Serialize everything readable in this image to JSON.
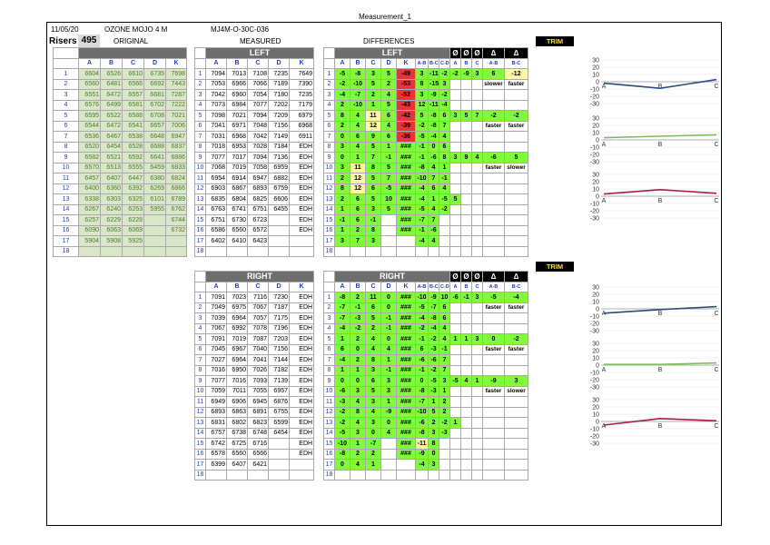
{
  "title": "Measurement_1",
  "header": {
    "date": "11/05/20",
    "product": "OZONE MOJO 4 M",
    "code": "MJ4M-O-30C-036"
  },
  "risers": {
    "label": "Risers",
    "count": "495"
  },
  "groups": {
    "original": "ORIGINAL",
    "measured": "MEASURED",
    "differences": "DIFFERENCES"
  },
  "bars": {
    "left": "LEFT",
    "right": "RIGHT",
    "trim": "TRIM",
    "phi": "Ø",
    "delta": "Δ"
  },
  "cols": {
    "letters": [
      "A",
      "B",
      "C",
      "D",
      "K"
    ],
    "diff": [
      "A",
      "B",
      "C",
      "D",
      "K",
      "A-B",
      "B-C",
      "C-D"
    ],
    "sym": [
      "Ø",
      "Ø",
      "Ø",
      "Δ",
      "Δ"
    ],
    "sub": [
      "A",
      "B",
      "C",
      "A-B",
      "B-C"
    ]
  },
  "original_rows": [
    [
      "1",
      "6604",
      "6526",
      "6610",
      "6735",
      "7698"
    ],
    [
      "2",
      "6560",
      "6481",
      "6566",
      "6692",
      "7443"
    ],
    [
      "3",
      "6551",
      "6472",
      "6557",
      "6681",
      "7287"
    ],
    [
      "4",
      "6576",
      "6499",
      "6581",
      "6702",
      "7222"
    ],
    [
      "5",
      "6595",
      "6522",
      "6588",
      "6708",
      "7021"
    ],
    [
      "6",
      "6544",
      "6472",
      "6541",
      "6657",
      "7006"
    ],
    [
      "7",
      "6536",
      "6467",
      "6538",
      "6648",
      "6947"
    ],
    [
      "8",
      "6520",
      "6454",
      "6528",
      "6688",
      "6837"
    ],
    [
      "9",
      "6582",
      "6521",
      "6592",
      "6641",
      "6886"
    ],
    [
      "10",
      "6570",
      "6513",
      "6555",
      "6459",
      "6833"
    ],
    [
      "11",
      "6457",
      "6407",
      "6447",
      "6380",
      "6824"
    ],
    [
      "12",
      "6400",
      "6360",
      "6392",
      "6269",
      "6866"
    ],
    [
      "13",
      "6338",
      "6303",
      "6325",
      "6101",
      "6789"
    ],
    [
      "14",
      "6267",
      "6240",
      "6253",
      "5955",
      "6762"
    ],
    [
      "15",
      "6257",
      "6229",
      "6228",
      "",
      "6744"
    ],
    [
      "16",
      "6090",
      "6063",
      "6069",
      "",
      "6732"
    ],
    [
      "17",
      "5904",
      "5908",
      "5925",
      "",
      ""
    ],
    [
      "18",
      "",
      "",
      "",
      "",
      ""
    ]
  ],
  "measured_left": [
    [
      "1",
      "7094",
      "7013",
      "7108",
      "7235",
      "7649"
    ],
    [
      "2",
      "7053",
      "6966",
      "7066",
      "7189",
      "7390"
    ],
    [
      "3",
      "7042",
      "6960",
      "7054",
      "7180",
      "7235"
    ],
    [
      "4",
      "7073",
      "6984",
      "7077",
      "7202",
      "7179"
    ],
    [
      "5",
      "7098",
      "7021",
      "7094",
      "7209",
      "6979"
    ],
    [
      "6",
      "7041",
      "6971",
      "7048",
      "7156",
      "6968"
    ],
    [
      "7",
      "7031",
      "6968",
      "7042",
      "7149",
      "6911"
    ],
    [
      "8",
      "7018",
      "6953",
      "7028",
      "7184",
      "EDH"
    ],
    [
      "9",
      "7077",
      "7017",
      "7094",
      "7136",
      "EDH"
    ],
    [
      "10",
      "7068",
      "7019",
      "7058",
      "6959",
      "EDH"
    ],
    [
      "11",
      "6954",
      "6914",
      "6947",
      "6882",
      "EDH"
    ],
    [
      "12",
      "6903",
      "6867",
      "6893",
      "6759",
      "EDH"
    ],
    [
      "13",
      "6835",
      "6804",
      "6825",
      "6606",
      "EDH"
    ],
    [
      "14",
      "6763",
      "6741",
      "6751",
      "6455",
      "EDH"
    ],
    [
      "15",
      "6751",
      "6730",
      "6723",
      "",
      "EDH"
    ],
    [
      "16",
      "6586",
      "6560",
      "6572",
      "",
      "EDH"
    ],
    [
      "17",
      "6402",
      "6410",
      "6423",
      "",
      ""
    ],
    [
      "18",
      "",
      "",
      "",
      "",
      ""
    ]
  ],
  "measured_right": [
    [
      "1",
      "7091",
      "7023",
      "7116",
      "7230",
      "EDH"
    ],
    [
      "2",
      "7049",
      "6975",
      "7067",
      "7187",
      "EDH"
    ],
    [
      "3",
      "7039",
      "6964",
      "7057",
      "7175",
      "EDH"
    ],
    [
      "4",
      "7067",
      "6992",
      "7078",
      "7196",
      "EDH"
    ],
    [
      "5",
      "7091",
      "7019",
      "7087",
      "7203",
      "EDH"
    ],
    [
      "6",
      "7045",
      "6967",
      "7040",
      "7156",
      "EDH"
    ],
    [
      "7",
      "7027",
      "6964",
      "7041",
      "7144",
      "EDH"
    ],
    [
      "8",
      "7016",
      "6950",
      "7026",
      "7182",
      "EDH"
    ],
    [
      "9",
      "7077",
      "7016",
      "7093",
      "7139",
      "EDH"
    ],
    [
      "10",
      "7059",
      "7011",
      "7055",
      "6957",
      "EDH"
    ],
    [
      "11",
      "6949",
      "6906",
      "6945",
      "6876",
      "EDH"
    ],
    [
      "12",
      "6893",
      "6863",
      "6891",
      "6755",
      "EDH"
    ],
    [
      "13",
      "6831",
      "6802",
      "6823",
      "6599",
      "EDH"
    ],
    [
      "14",
      "6757",
      "6738",
      "6748",
      "6454",
      "EDH"
    ],
    [
      "15",
      "6742",
      "6725",
      "6716",
      "",
      "EDH"
    ],
    [
      "16",
      "6578",
      "6560",
      "6566",
      "",
      "EDH"
    ],
    [
      "17",
      "6399",
      "6407",
      "6421",
      "",
      ""
    ],
    [
      "18",
      "",
      "",
      "",
      "",
      ""
    ]
  ],
  "diff_left": [
    [
      "1",
      "-5",
      "-8",
      "3",
      "5",
      "-49",
      "3",
      "-11",
      "-2"
    ],
    [
      "2",
      "-2",
      "-10",
      "5",
      "2",
      "-53",
      "8",
      "-15",
      "3"
    ],
    [
      "3",
      "-4",
      "-7",
      "2",
      "4",
      "-52",
      "3",
      "-9",
      "-2"
    ],
    [
      "4",
      "2",
      "-10",
      "1",
      "5",
      "-43",
      "12",
      "-11",
      "-4"
    ],
    [
      "5",
      "8",
      "4",
      "11",
      "6",
      "-42",
      "5",
      "-8",
      "6"
    ],
    [
      "6",
      "2",
      "4",
      "12",
      "4",
      "-39",
      "-2",
      "-8",
      "7"
    ],
    [
      "7",
      "0",
      "6",
      "9",
      "6",
      "-36",
      "-5",
      "-4",
      "4"
    ],
    [
      "8",
      "3",
      "4",
      "5",
      "1",
      "###",
      "-1",
      "0",
      "6"
    ],
    [
      "9",
      "0",
      "1",
      "7",
      "-1",
      "###",
      "-1",
      "-6",
      "8"
    ],
    [
      "10",
      "3",
      "11",
      "8",
      "5",
      "###",
      "-8",
      "4",
      "1"
    ],
    [
      "11",
      "2",
      "12",
      "5",
      "7",
      "###",
      "-10",
      "7",
      "-1"
    ],
    [
      "12",
      "8",
      "12",
      "6",
      "-5",
      "###",
      "-4",
      "6",
      "4"
    ],
    [
      "13",
      "2",
      "6",
      "5",
      "10",
      "###",
      "-4",
      "1",
      "-5"
    ],
    [
      "14",
      "1",
      "6",
      "3",
      "5",
      "###",
      "-5",
      "4",
      "-2"
    ],
    [
      "15",
      "-1",
      "6",
      "-1",
      "",
      "###",
      "-7",
      "7",
      ""
    ],
    [
      "16",
      "1",
      "2",
      "8",
      "",
      "###",
      "-1",
      "-6",
      ""
    ],
    [
      "17",
      "3",
      "7",
      "3",
      "",
      "",
      "-4",
      "4",
      ""
    ],
    [
      "18",
      "",
      "",
      "",
      "",
      "",
      "",
      "",
      ""
    ]
  ],
  "diff_right": [
    [
      "1",
      "-8",
      "2",
      "11",
      "0",
      "###",
      "-10",
      "-9",
      "10"
    ],
    [
      "2",
      "-7",
      "-1",
      "6",
      "0",
      "###",
      "-5",
      "-7",
      "6"
    ],
    [
      "3",
      "-7",
      "-3",
      "5",
      "-1",
      "###",
      "-4",
      "-8",
      "6"
    ],
    [
      "4",
      "-4",
      "-2",
      "2",
      "-1",
      "###",
      "-2",
      "-4",
      "4"
    ],
    [
      "5",
      "1",
      "2",
      "4",
      "0",
      "###",
      "-1",
      "-2",
      "4"
    ],
    [
      "6",
      "6",
      "0",
      "4",
      "4",
      "###",
      "6",
      "-3",
      "-1"
    ],
    [
      "7",
      "-4",
      "2",
      "8",
      "1",
      "###",
      "-6",
      "-6",
      "7"
    ],
    [
      "8",
      "1",
      "1",
      "3",
      "-1",
      "###",
      "-1",
      "-2",
      "7"
    ],
    [
      "9",
      "0",
      "0",
      "6",
      "3",
      "###",
      "0",
      "-5",
      "3"
    ],
    [
      "10",
      "-6",
      "3",
      "5",
      "3",
      "###",
      "-8",
      "-3",
      "1"
    ],
    [
      "11",
      "-3",
      "4",
      "3",
      "1",
      "###",
      "-7",
      "1",
      "2"
    ],
    [
      "12",
      "-2",
      "8",
      "4",
      "-9",
      "###",
      "-10",
      "5",
      "2"
    ],
    [
      "13",
      "-2",
      "4",
      "3",
      "0",
      "###",
      "-6",
      "2",
      "-2"
    ],
    [
      "14",
      "-5",
      "3",
      "0",
      "4",
      "###",
      "-8",
      "3",
      "-3"
    ],
    [
      "15",
      "-10",
      "1",
      "-7",
      "",
      "###",
      "-11",
      "8",
      ""
    ],
    [
      "16",
      "-8",
      "2",
      "2",
      "",
      "###",
      "-9",
      "0",
      ""
    ],
    [
      "17",
      "0",
      "4",
      "1",
      "",
      "",
      "-4",
      "3",
      ""
    ],
    [
      "18",
      "",
      "",
      "",
      "",
      "",
      "",
      "",
      ""
    ]
  ],
  "trim_left": {
    "block1": [
      "-2",
      "-9",
      "3",
      "6",
      "-12"
    ],
    "block1_labels": [
      "slower",
      "faster"
    ],
    "block2": [
      "3",
      "5",
      "7",
      "-2",
      "-2"
    ],
    "block2_labels": [
      "faster",
      "faster"
    ],
    "block3": [
      "3",
      "9",
      "4",
      "-6",
      "5"
    ],
    "block3_labels": [
      "faster",
      "slower"
    ],
    "extra": "5"
  },
  "trim_right": {
    "block1": [
      "-6",
      "-1",
      "3",
      "-5",
      "-4"
    ],
    "block1_labels": [
      "faster",
      "faster"
    ],
    "block2": [
      "1",
      "1",
      "3",
      "0",
      "-2"
    ],
    "block2_labels": [
      "faster",
      "faster"
    ],
    "block3": [
      "-5",
      "4",
      "1",
      "-9",
      "3"
    ],
    "block3_labels": [
      "faster",
      "slower"
    ],
    "extra": "1"
  },
  "colors": {
    "green": "#7ffb3a",
    "red": "#e8333c",
    "yellow": "#fdf9a6",
    "orig_bg": "#d9e7c8",
    "navy": "#2e4a7d",
    "lgreen": "#7cbf5a",
    "crimson": "#b0174f"
  },
  "chart_data": [
    {
      "type": "line",
      "x": [
        "A",
        "B",
        "C"
      ],
      "series": [
        {
          "values": [
            -2,
            -9,
            3
          ],
          "color": "#2e4a7d"
        }
      ],
      "ylim": [
        -30,
        30
      ],
      "yticks": [
        "30",
        "20",
        "10",
        "0",
        "-10",
        "-20",
        "-30"
      ]
    },
    {
      "type": "line",
      "x": [
        "A",
        "B",
        "C"
      ],
      "series": [
        {
          "values": [
            3,
            5,
            7
          ],
          "color": "#7cbf5a"
        }
      ],
      "ylim": [
        -30,
        30
      ],
      "yticks": [
        "30",
        "20",
        "10",
        "0",
        "-10",
        "-20",
        "-30"
      ]
    },
    {
      "type": "line",
      "x": [
        "A",
        "B",
        "C"
      ],
      "series": [
        {
          "values": [
            3,
            9,
            4
          ],
          "color": "#b0174f"
        }
      ],
      "ylim": [
        -30,
        30
      ],
      "yticks": [
        "30",
        "20",
        "10",
        "0",
        "-10",
        "-20",
        "-30"
      ]
    },
    {
      "type": "line",
      "x": [
        "A",
        "B",
        "C"
      ],
      "series": [
        {
          "values": [
            -6,
            -1,
            3
          ],
          "color": "#2e4a7d"
        }
      ],
      "ylim": [
        -30,
        30
      ],
      "yticks": [
        "30",
        "20",
        "10",
        "0",
        "-10",
        "-20",
        "-30"
      ]
    },
    {
      "type": "line",
      "x": [
        "A",
        "B",
        "C"
      ],
      "series": [
        {
          "values": [
            1,
            1,
            3
          ],
          "color": "#7cbf5a"
        }
      ],
      "ylim": [
        -30,
        30
      ],
      "yticks": [
        "30",
        "20",
        "10",
        "0",
        "-10",
        "-20",
        "-30"
      ]
    },
    {
      "type": "line",
      "x": [
        "A",
        "B",
        "C"
      ],
      "series": [
        {
          "values": [
            -5,
            4,
            1
          ],
          "color": "#b0174f"
        }
      ],
      "ylim": [
        -30,
        30
      ],
      "yticks": [
        "30",
        "20",
        "10",
        "0",
        "-10",
        "-20",
        "-30"
      ]
    }
  ]
}
